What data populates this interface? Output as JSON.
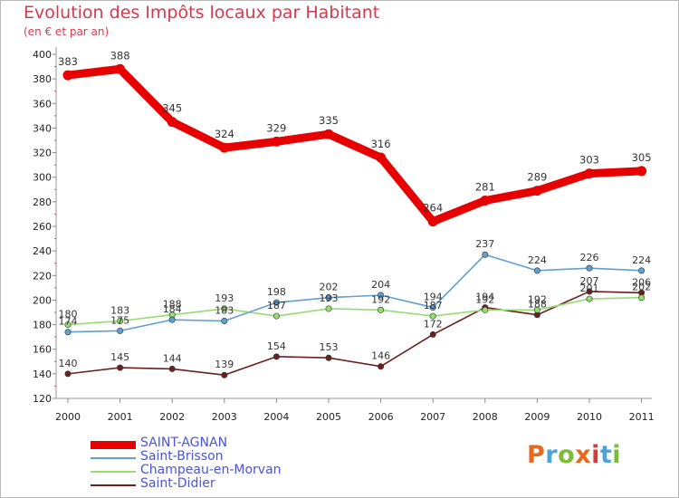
{
  "header": {
    "title": "Evolution des Impôts locaux par Habitant",
    "subtitle": "(en € et par an)"
  },
  "logo": {
    "text": "Proxiti",
    "colors": [
      "#e8681d",
      "#4ba3d9",
      "#7dbb3a",
      "#e8681d",
      "#d53a3a",
      "#4ba3d9",
      "#7dbb3a"
    ]
  },
  "chart_data": {
    "type": "line",
    "title": "Evolution des Impôts locaux par Habitant",
    "subtitle": "(en € et par an)",
    "x": [
      "2000",
      "2001",
      "2002",
      "2003",
      "2004",
      "2005",
      "2006",
      "2007",
      "2008",
      "2009",
      "2010",
      "2011"
    ],
    "ylim": [
      120,
      400
    ],
    "yticks": [
      120,
      140,
      160,
      180,
      200,
      220,
      240,
      260,
      280,
      300,
      320,
      340,
      360,
      380,
      400
    ],
    "grid": false,
    "legend": "bottom-left",
    "series": [
      {
        "name": "SAINT-AGNAN",
        "color": "#e60000",
        "values": [
          383,
          388,
          345,
          324,
          329,
          335,
          316,
          264,
          281,
          289,
          303,
          305
        ]
      },
      {
        "name": "Saint-Brisson",
        "color": "#5f9fd2",
        "values": [
          174,
          175,
          184,
          183,
          198,
          202,
          204,
          194,
          237,
          224,
          226,
          224
        ]
      },
      {
        "name": "Champeau-en-Morvan",
        "color": "#94dd6e",
        "values": [
          180,
          183,
          188,
          193,
          187,
          193,
          192,
          187,
          192,
          192,
          201,
          202
        ]
      },
      {
        "name": "Saint-Didier",
        "color": "#6b1f1f",
        "values": [
          140,
          145,
          144,
          139,
          154,
          153,
          146,
          172,
          194,
          188,
          207,
          206
        ]
      }
    ]
  }
}
